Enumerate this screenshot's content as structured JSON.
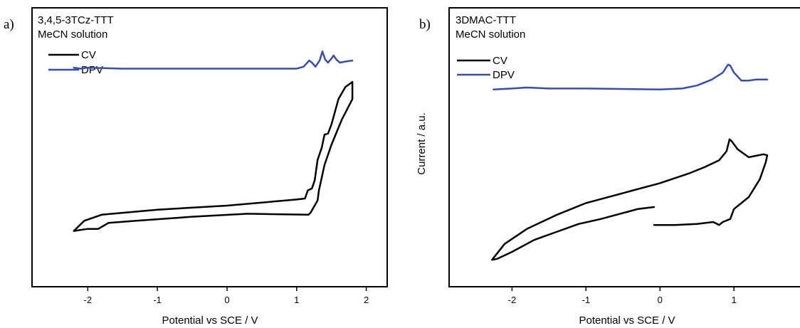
{
  "chart_data": [
    {
      "panel_label": "a)",
      "type": "line",
      "legend_title": [
        "3,4,5-3TCz-TTT",
        "MeCN solution"
      ],
      "xlabel": "Potential vs SCE / V",
      "ylabel": "",
      "xlim": [
        -2.8,
        2.3
      ],
      "ylim": [
        -1.15,
        1.6
      ],
      "x_ticks": [
        -2,
        -1,
        0,
        1,
        2
      ],
      "y_ticks": [],
      "legend_position": "top-left",
      "grid": false,
      "series": [
        {
          "name": "CV",
          "color": "#000000",
          "points": [
            [
              0.3,
              -0.43
            ],
            [
              -0.5,
              -0.46
            ],
            [
              -1.3,
              -0.5
            ],
            [
              -1.7,
              -0.52
            ],
            [
              -1.85,
              -0.58
            ],
            [
              -2.0,
              -0.58
            ],
            [
              -2.2,
              -0.6
            ],
            [
              -2.05,
              -0.5
            ],
            [
              -1.8,
              -0.44
            ],
            [
              -1.0,
              -0.39
            ],
            [
              0.0,
              -0.35
            ],
            [
              1.0,
              -0.29
            ],
            [
              1.12,
              -0.28
            ],
            [
              1.16,
              -0.2
            ],
            [
              1.22,
              -0.18
            ],
            [
              1.26,
              -0.1
            ],
            [
              1.3,
              0.1
            ],
            [
              1.36,
              0.22
            ],
            [
              1.4,
              0.35
            ],
            [
              1.45,
              0.36
            ],
            [
              1.5,
              0.45
            ],
            [
              1.6,
              0.7
            ],
            [
              1.7,
              0.82
            ],
            [
              1.8,
              0.87
            ],
            [
              1.8,
              0.7
            ],
            [
              1.65,
              0.5
            ],
            [
              1.5,
              0.25
            ],
            [
              1.4,
              0.05
            ],
            [
              1.32,
              -0.2
            ],
            [
              1.3,
              -0.3
            ],
            [
              1.2,
              -0.42
            ],
            [
              1.17,
              -0.44
            ],
            [
              0.3,
              -0.43
            ]
          ]
        },
        {
          "name": "DPV",
          "color": "#3a4ea6",
          "points": [
            [
              -2.2,
              1.01
            ],
            [
              -2.1,
              1.0
            ],
            [
              -2.0,
              1.01
            ],
            [
              -1.5,
              1.0
            ],
            [
              -1.0,
              1.0
            ],
            [
              0.0,
              1.0
            ],
            [
              1.0,
              1.0
            ],
            [
              1.1,
              1.02
            ],
            [
              1.18,
              1.08
            ],
            [
              1.22,
              1.06
            ],
            [
              1.27,
              1.02
            ],
            [
              1.33,
              1.08
            ],
            [
              1.37,
              1.17
            ],
            [
              1.41,
              1.09
            ],
            [
              1.45,
              1.06
            ],
            [
              1.5,
              1.1
            ],
            [
              1.53,
              1.13
            ],
            [
              1.57,
              1.09
            ],
            [
              1.62,
              1.06
            ],
            [
              1.7,
              1.07
            ],
            [
              1.8,
              1.08
            ]
          ]
        }
      ]
    },
    {
      "panel_label": "b)",
      "type": "line",
      "legend_title": [
        "3DMAC-TTT",
        "MeCN solution"
      ],
      "xlabel": "Potential vs SCE / V",
      "ylabel": "Current / a.u.",
      "xlim": [
        -2.85,
        1.95
      ],
      "ylim": [
        -1.4,
        1.4
      ],
      "x_ticks": [
        -2,
        -1,
        0,
        1
      ],
      "y_ticks": [],
      "legend_position": "top-left",
      "grid": false,
      "series": [
        {
          "name": "CV",
          "color": "#000000",
          "points": [
            [
              -0.08,
              -0.6
            ],
            [
              -0.3,
              -0.62
            ],
            [
              -0.6,
              -0.68
            ],
            [
              -0.8,
              -0.72
            ],
            [
              -1.1,
              -0.77
            ],
            [
              -1.4,
              -0.85
            ],
            [
              -1.7,
              -0.93
            ],
            [
              -2.0,
              -1.05
            ],
            [
              -2.2,
              -1.12
            ],
            [
              -2.27,
              -1.13
            ],
            [
              -2.1,
              -0.97
            ],
            [
              -1.8,
              -0.82
            ],
            [
              -1.4,
              -0.68
            ],
            [
              -1.0,
              -0.56
            ],
            [
              -0.5,
              -0.46
            ],
            [
              0.0,
              -0.36
            ],
            [
              0.4,
              -0.26
            ],
            [
              0.6,
              -0.2
            ],
            [
              0.8,
              -0.13
            ],
            [
              0.9,
              -0.04
            ],
            [
              0.94,
              0.08
            ],
            [
              0.97,
              0.06
            ],
            [
              1.05,
              -0.02
            ],
            [
              1.2,
              -0.1
            ],
            [
              1.4,
              -0.07
            ],
            [
              1.45,
              -0.08
            ],
            [
              1.43,
              -0.15
            ],
            [
              1.35,
              -0.32
            ],
            [
              1.2,
              -0.5
            ],
            [
              1.0,
              -0.62
            ],
            [
              0.95,
              -0.72
            ],
            [
              0.85,
              -0.75
            ],
            [
              0.8,
              -0.78
            ],
            [
              0.72,
              -0.75
            ],
            [
              0.5,
              -0.77
            ],
            [
              0.2,
              -0.78
            ],
            [
              -0.08,
              -0.78
            ]
          ]
        },
        {
          "name": "DPV",
          "color": "#3a4ea6",
          "points": [
            [
              -2.25,
              0.58
            ],
            [
              -2.0,
              0.59
            ],
            [
              -1.8,
              0.6
            ],
            [
              -1.5,
              0.59
            ],
            [
              -1.0,
              0.59
            ],
            [
              0.0,
              0.58
            ],
            [
              0.3,
              0.59
            ],
            [
              0.5,
              0.62
            ],
            [
              0.7,
              0.68
            ],
            [
              0.85,
              0.75
            ],
            [
              0.92,
              0.83
            ],
            [
              0.95,
              0.82
            ],
            [
              1.0,
              0.75
            ],
            [
              1.1,
              0.67
            ],
            [
              1.2,
              0.67
            ],
            [
              1.3,
              0.68
            ],
            [
              1.45,
              0.68
            ]
          ]
        }
      ]
    }
  ]
}
